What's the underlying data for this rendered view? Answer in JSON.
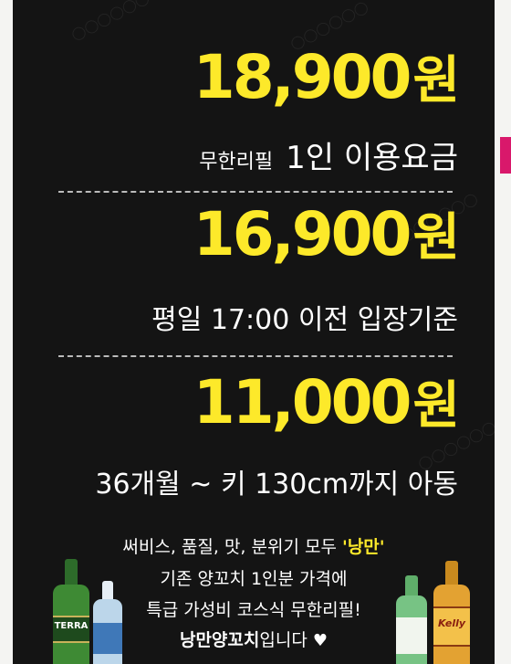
{
  "price_tiers": [
    {
      "price": "18,900",
      "currency": "원",
      "label_small": "무한리필",
      "label_main": "1인 이용요금"
    },
    {
      "price": "16,900",
      "currency": "원",
      "label_main": "평일 17:00 이전 입장기준"
    },
    {
      "price": "11,000",
      "currency": "원",
      "label_main": "36개월 ~ 키 130cm까지 아동"
    }
  ],
  "promo": {
    "line1_prefix": "써비스, 품질, 맛, 분위기 모두 ",
    "line1_highlight": "'낭만'",
    "line2": "기존 양꼬치 1인분 가격에",
    "line3": "특급 가성비 코스식 무한리필!",
    "line4_bold": "낭만양꼬치",
    "line4_rest": "입니다",
    "heart": "♥"
  },
  "bottles": {
    "left_beer_label": "TERRA",
    "right_beer_label": "Kelly"
  },
  "colors": {
    "background": "#141414",
    "price": "#fde92a",
    "text": "#ffffff",
    "accent_strip": "#d9186b"
  }
}
